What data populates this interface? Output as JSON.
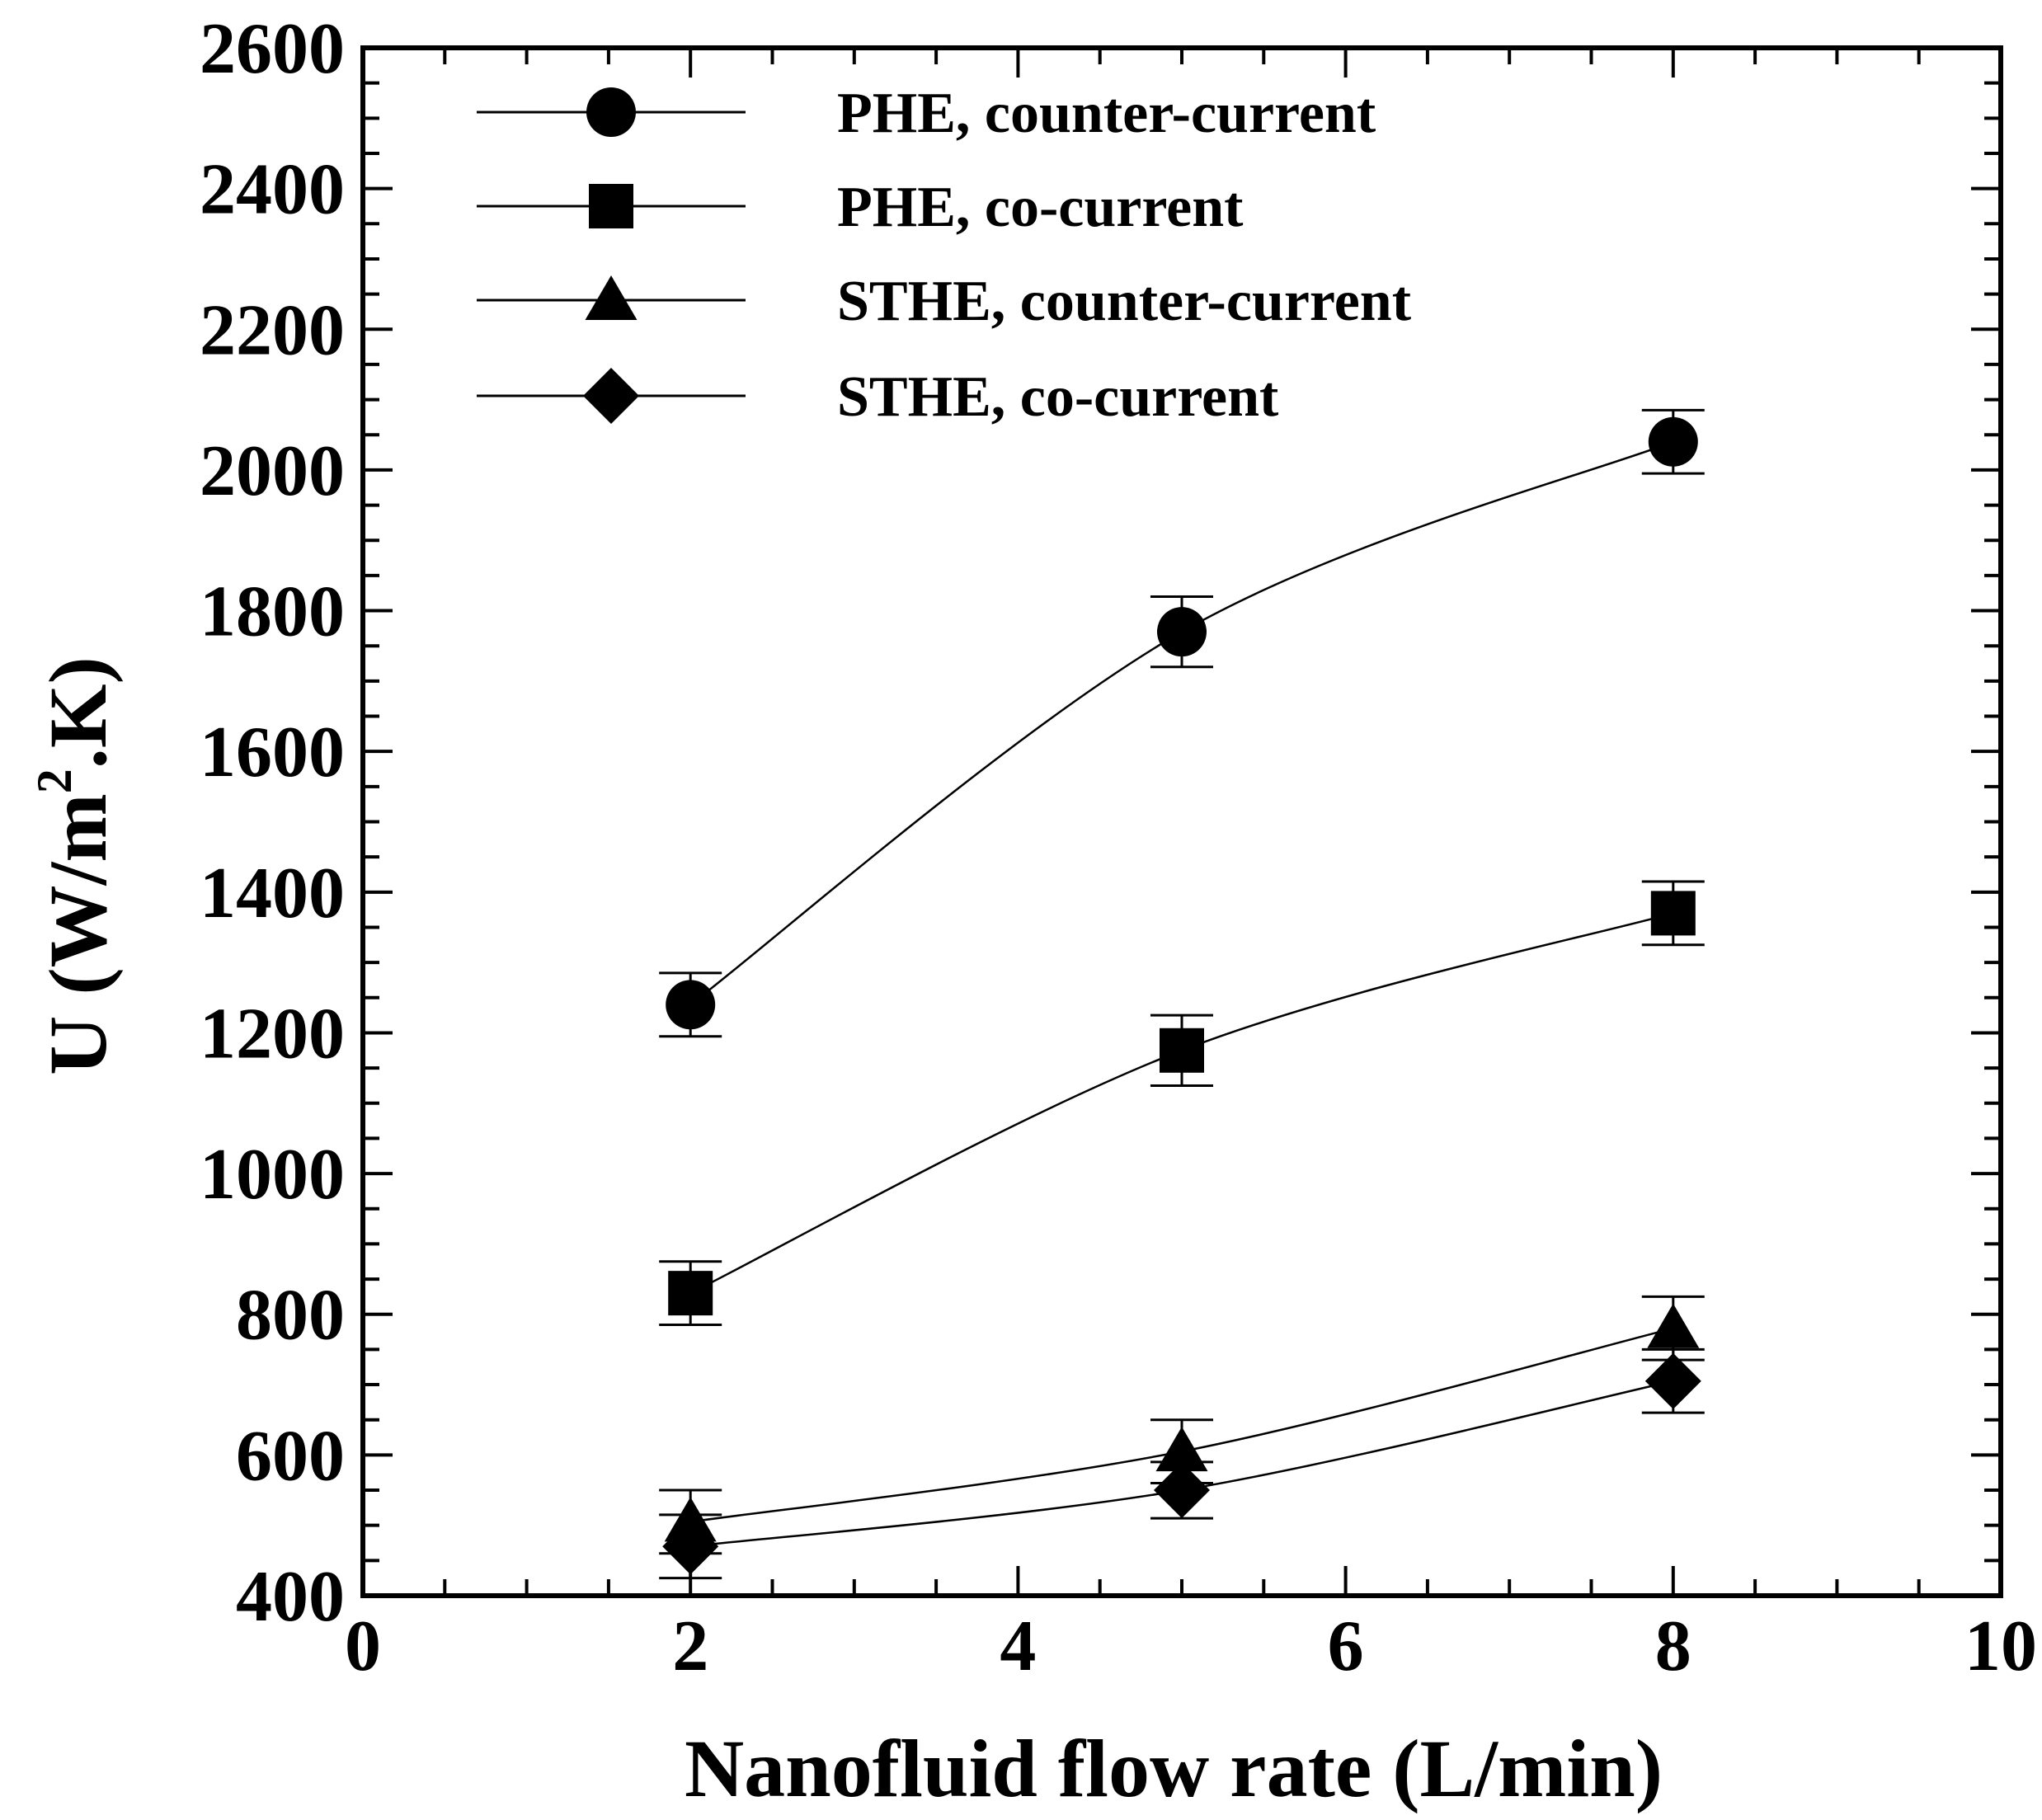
{
  "chart_data": {
    "type": "line",
    "title": "",
    "xlabel": "Nanofluid flow rate (L/min)",
    "ylabel": "U (W/m",
    "ylabel_sup": "2",
    "ylabel_end": ".K)",
    "xlim": [
      0,
      10
    ],
    "ylim": [
      400,
      2600
    ],
    "x_ticks": [
      "0",
      "2",
      "4",
      "6",
      "8",
      "10"
    ],
    "y_ticks": [
      "400",
      "600",
      "800",
      "1000",
      "1200",
      "1400",
      "1600",
      "1800",
      "2000",
      "2200",
      "2400",
      "2600"
    ],
    "grid": false,
    "legend_position": "top-left",
    "series": [
      {
        "name": "PHE, counter-current",
        "marker": "circle",
        "x": [
          2,
          5,
          8
        ],
        "y": [
          1240,
          1770,
          2040
        ],
        "error": [
          45,
          50,
          45
        ]
      },
      {
        "name": "PHE, co-current",
        "marker": "square",
        "x": [
          2,
          5,
          8
        ],
        "y": [
          830,
          1175,
          1370
        ],
        "error": [
          45,
          50,
          45
        ]
      },
      {
        "name": "STHE, counter-current",
        "marker": "triangle",
        "x": [
          2,
          5,
          8
        ],
        "y": [
          505,
          605,
          780
        ],
        "error": [
          45,
          45,
          45
        ]
      },
      {
        "name": "STHE, co-current",
        "marker": "diamond",
        "x": [
          2,
          5,
          8
        ],
        "y": [
          470,
          550,
          705
        ],
        "error": [
          45,
          40,
          45
        ]
      }
    ]
  }
}
